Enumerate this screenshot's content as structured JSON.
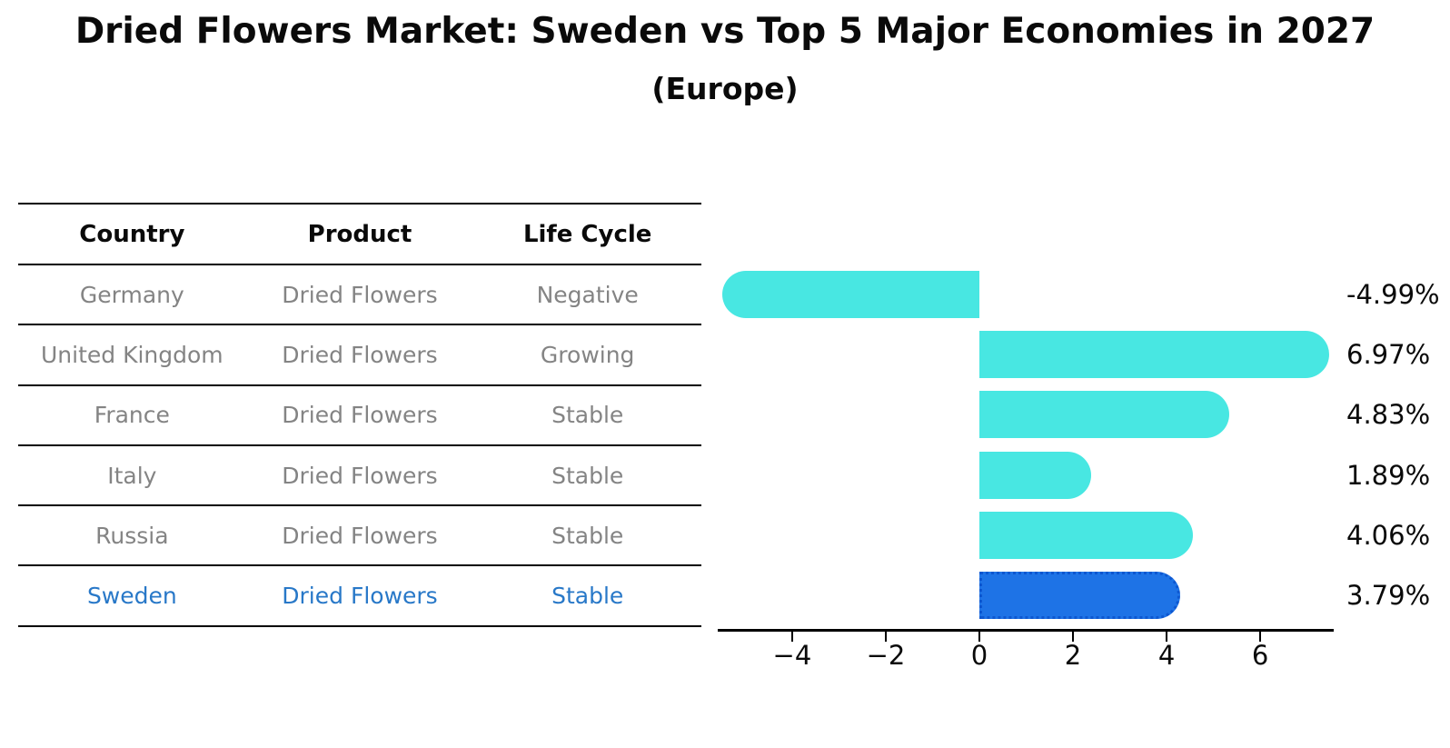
{
  "figure": {
    "title": "Dried Flowers Market: Sweden vs Top 5 Major Economies in 2027",
    "subtitle": "(Europe)"
  },
  "table": {
    "headers": [
      "Country",
      "Product",
      "Life Cycle"
    ],
    "rows": [
      {
        "country": "Germany",
        "product": "Dried Flowers",
        "life_cycle": "Negative",
        "highlight": false
      },
      {
        "country": "United Kingdom",
        "product": "Dried Flowers",
        "life_cycle": "Growing",
        "highlight": false
      },
      {
        "country": "France",
        "product": "Dried Flowers",
        "life_cycle": "Stable",
        "highlight": false
      },
      {
        "country": "Italy",
        "product": "Dried Flowers",
        "life_cycle": "Stable",
        "highlight": false
      },
      {
        "country": "Russia",
        "product": "Dried Flowers",
        "life_cycle": "Stable",
        "highlight": false
      },
      {
        "country": "Sweden",
        "product": "Dried Flowers",
        "life_cycle": "Stable",
        "highlight": true
      }
    ]
  },
  "chart_data": {
    "type": "bar",
    "orientation": "horizontal",
    "title": "Dried Flowers Market: Sweden vs Top 5 Major Economies in 2027 (Europe)",
    "categories": [
      "Germany",
      "United Kingdom",
      "France",
      "Italy",
      "Russia",
      "Sweden"
    ],
    "values": [
      -4.99,
      6.97,
      4.83,
      1.89,
      4.06,
      3.79
    ],
    "bar_labels": [
      "-4.99%",
      "6.97%",
      "4.83%",
      "1.89%",
      "4.06%",
      "3.79%"
    ],
    "x_ticks": [
      -4,
      -2,
      0,
      2,
      4,
      6
    ],
    "x_tick_labels": [
      "−4",
      "−2",
      "0",
      "2",
      "4",
      "6"
    ],
    "xlim": [
      -5.59,
      7.57
    ],
    "highlight_index": 5,
    "grid": false,
    "legend": "none"
  },
  "colors": {
    "bar": "#48E7E2",
    "highlight_bar": "#1E73E6",
    "highlight_edge": "#0D57D0",
    "table_text": "#848484",
    "highlight_text": "#2878C8",
    "header_text": "#0a0a0a",
    "axis": "#000000",
    "value_label": "#0a0a0a"
  }
}
